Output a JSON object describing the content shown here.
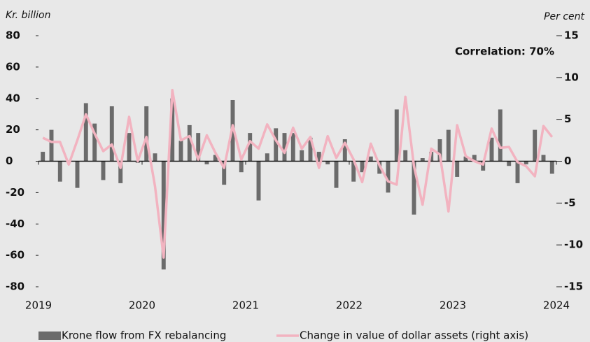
{
  "chart_data": {
    "type": "bar-line",
    "y_label": "Kr. billion",
    "y2_label": "Per cent",
    "annotation": "Correlation: 70%",
    "x": [
      2019.042,
      2019.125,
      2019.208,
      2019.292,
      2019.375,
      2019.458,
      2019.542,
      2019.625,
      2019.708,
      2019.792,
      2019.875,
      2019.958,
      2020.042,
      2020.125,
      2020.208,
      2020.292,
      2020.375,
      2020.458,
      2020.542,
      2020.625,
      2020.708,
      2020.792,
      2020.875,
      2020.958,
      2021.042,
      2021.125,
      2021.208,
      2021.292,
      2021.375,
      2021.458,
      2021.542,
      2021.625,
      2021.708,
      2021.792,
      2021.875,
      2021.958,
      2022.042,
      2022.125,
      2022.208,
      2022.292,
      2022.375,
      2022.458,
      2022.542,
      2022.625,
      2022.708,
      2022.792,
      2022.875,
      2022.958,
      2023.042,
      2023.125,
      2023.208,
      2023.292,
      2023.375,
      2023.458,
      2023.542,
      2023.625,
      2023.708,
      2023.792,
      2023.875,
      2023.958
    ],
    "series": [
      {
        "name": "Krone flow from FX rebalancing",
        "type": "bar",
        "color": "#6b6b6b",
        "values": [
          6,
          20,
          -13,
          0,
          -17,
          37,
          24,
          -12,
          35,
          -14,
          18,
          -1,
          35,
          5,
          -69,
          40,
          13,
          23,
          18,
          -2,
          4,
          -15,
          39,
          -7,
          18,
          -25,
          5,
          21,
          18,
          18,
          7,
          15,
          6,
          -2,
          -17,
          14,
          -13,
          -7,
          3,
          -8,
          -20,
          33,
          7,
          -34,
          2,
          6,
          14,
          20,
          -10,
          3,
          4,
          -6,
          15,
          33,
          -3,
          -14,
          -2,
          20,
          4,
          -8
        ]
      },
      {
        "name": "Change in value of dollar assets (right axis)",
        "type": "line",
        "axis": "y2",
        "color": "#f2b3c0",
        "values": [
          2.8,
          2.3,
          2.3,
          -0.4,
          2.5,
          5.6,
          3.3,
          1.2,
          2.0,
          -0.8,
          5.3,
          0,
          2.9,
          -3,
          -11.5,
          8.5,
          2.5,
          3.0,
          0.2,
          3.1,
          1,
          -0.8,
          4.3,
          0.2,
          2.4,
          1.5,
          4.4,
          2.5,
          1.0,
          4.0,
          1.5,
          2.9,
          -0.8,
          3.0,
          0.4,
          2.2,
          0.2,
          -2.5,
          2.1,
          -0.5,
          -2.4,
          -2.8,
          7.7,
          -0.6,
          -5.2,
          1.5,
          0.8,
          -6.0,
          4.3,
          0.6,
          0,
          -0.4,
          3.9,
          1.6,
          1.7,
          -0.1,
          -0.6,
          -1.8,
          4.2,
          2.9
        ]
      }
    ],
    "xlim": [
      2019,
      2024
    ],
    "xticks": [
      2019,
      2020,
      2021,
      2022,
      2023,
      2024
    ],
    "ylim": [
      -80,
      80
    ],
    "yticks": [
      -80,
      -60,
      -40,
      -20,
      0,
      20,
      40,
      60,
      80
    ],
    "y2lim": [
      -15,
      15
    ],
    "y2ticks": [
      -15,
      -10,
      -5,
      0,
      5,
      10,
      15
    ],
    "grid": false,
    "legend": "bottom"
  }
}
